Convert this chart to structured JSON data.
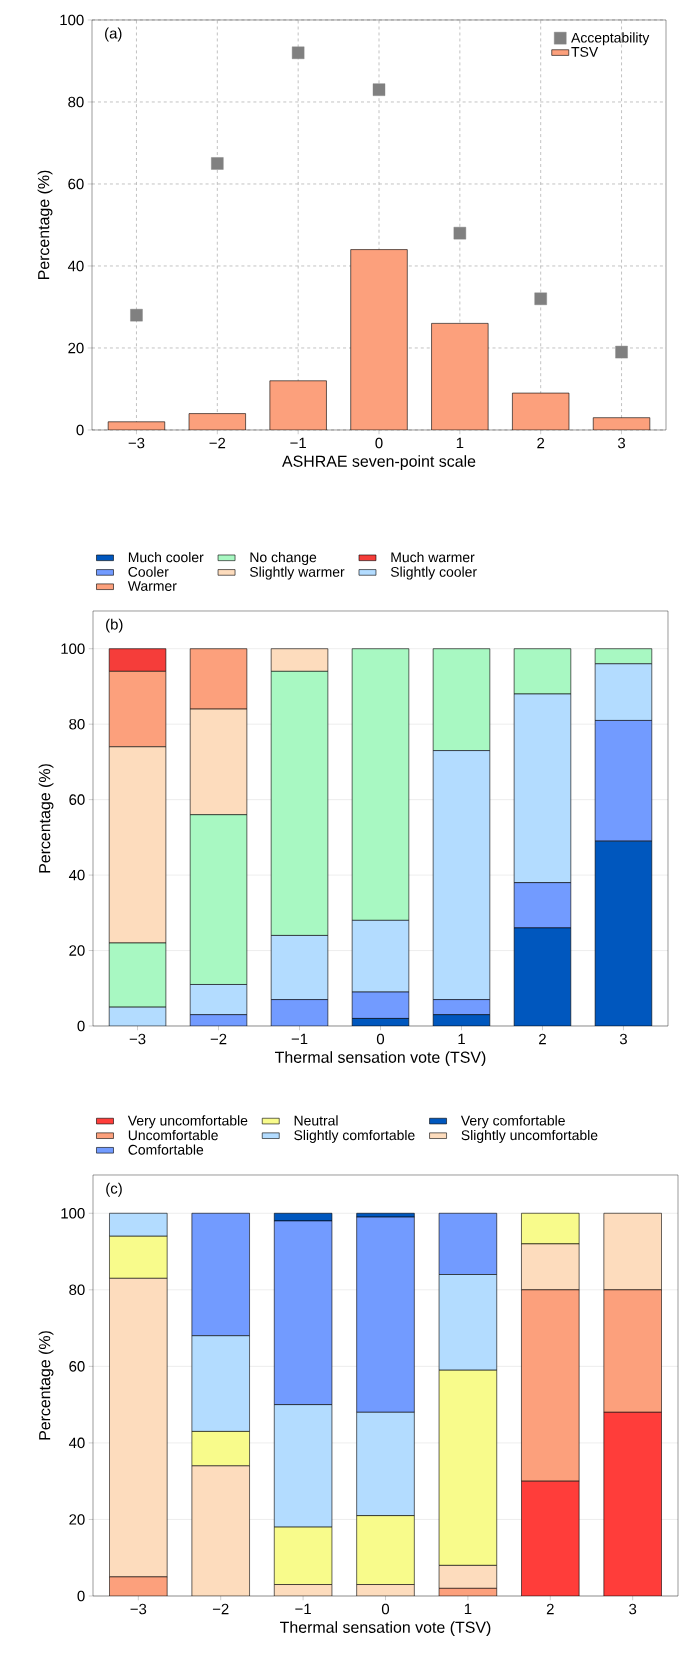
{
  "chart_data": [
    {
      "type": "bar",
      "annotations": [
        "(a)"
      ],
      "xlabel": "ASHRAE seven-point scale",
      "ylabel": "Percentage (%)",
      "categories": [
        "−3",
        "−2",
        "−1",
        "0",
        "1",
        "2",
        "3"
      ],
      "ylim": [
        0,
        100
      ],
      "yticks": [
        0,
        20,
        40,
        60,
        80,
        100
      ],
      "grid": true,
      "legend": "top right",
      "series": [
        {
          "name": "Acceptability",
          "type": "scatter",
          "marker": "square",
          "color": "#808080",
          "values": [
            28,
            65,
            92,
            83,
            48,
            32,
            19
          ]
        },
        {
          "name": "TSV",
          "type": "bar",
          "color": "#fca07c",
          "values": [
            2,
            4,
            12,
            44,
            26,
            9,
            3
          ]
        }
      ]
    },
    {
      "type": "bar",
      "stacked": true,
      "annotations": [
        "(b)"
      ],
      "xlabel": "Thermal sensation vote (TSV)",
      "ylabel": "Percentage (%)",
      "categories": [
        "−3",
        "−2",
        "−1",
        "0",
        "1",
        "2",
        "3"
      ],
      "ylim": [
        0,
        110
      ],
      "yticks": [
        0,
        20,
        40,
        60,
        80,
        100
      ],
      "grid": "y",
      "legend": "top",
      "series": [
        {
          "name": "Much cooler",
          "color": "#0057be",
          "values": [
            0,
            0,
            0,
            2,
            3,
            26,
            49
          ]
        },
        {
          "name": "Cooler",
          "color": "#729bff",
          "values": [
            0,
            3,
            7,
            7,
            4,
            12,
            32
          ]
        },
        {
          "name": "Slightly cooler",
          "color": "#b3dcff",
          "values": [
            5,
            8,
            17,
            19,
            66,
            50,
            15
          ]
        },
        {
          "name": "No change",
          "color": "#a8f8c2",
          "values": [
            17,
            45,
            70,
            72,
            27,
            12,
            4
          ]
        },
        {
          "name": "Slightly warmer",
          "color": "#fddcbd",
          "values": [
            52,
            28,
            6,
            0,
            0,
            0,
            0
          ]
        },
        {
          "name": "Warmer",
          "color": "#fca07c",
          "values": [
            20,
            16,
            0,
            0,
            0,
            0,
            0
          ]
        },
        {
          "name": "Much warmer",
          "color": "#f53d3a",
          "values": [
            6,
            0,
            0,
            0,
            0,
            0,
            0
          ]
        }
      ]
    },
    {
      "type": "bar",
      "stacked": true,
      "annotations": [
        "(c)"
      ],
      "xlabel": "Thermal sensation vote (TSV)",
      "ylabel": "Percentage (%)",
      "categories": [
        "−3",
        "−2",
        "−1",
        "0",
        "1",
        "2",
        "3"
      ],
      "ylim": [
        0,
        110
      ],
      "yticks": [
        0,
        20,
        40,
        60,
        80,
        100
      ],
      "grid": "y",
      "legend": "top",
      "series": [
        {
          "name": "Very uncomfortable",
          "color": "#ff3d3a",
          "values": [
            0,
            0,
            0,
            0,
            0,
            30,
            48
          ]
        },
        {
          "name": "Uncomfortable",
          "color": "#fca07c",
          "values": [
            5,
            0,
            0,
            0,
            2,
            50,
            32
          ]
        },
        {
          "name": "Slightly uncomfortable",
          "color": "#fddcbd",
          "values": [
            78,
            34,
            3,
            3,
            6,
            12,
            20
          ]
        },
        {
          "name": "Neutral",
          "color": "#f8fb8b",
          "values": [
            11,
            9,
            15,
            18,
            51,
            8,
            0
          ]
        },
        {
          "name": "Slightly comfortable",
          "color": "#b3dcff",
          "values": [
            6,
            25,
            32,
            27,
            25,
            0,
            0
          ]
        },
        {
          "name": "Comfortable",
          "color": "#729bff",
          "values": [
            0,
            32,
            48,
            51,
            16,
            0,
            0
          ]
        },
        {
          "name": "Very comfortable",
          "color": "#0057be",
          "values": [
            0,
            0,
            2,
            1,
            0,
            0,
            0
          ]
        }
      ]
    }
  ]
}
